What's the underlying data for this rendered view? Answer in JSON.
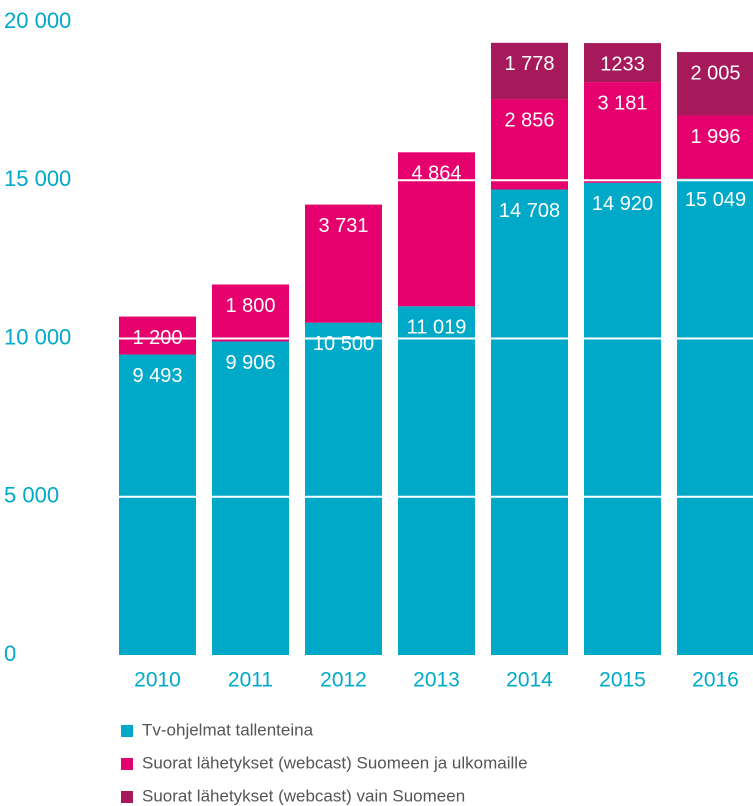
{
  "chart_data": {
    "type": "stacked_bar",
    "categories": [
      "2010",
      "2011",
      "2012",
      "2013",
      "2014",
      "2015",
      "2016"
    ],
    "series": [
      {
        "name": "Tv-ohjelmat tallenteina",
        "color": "#00a9c8",
        "values": [
          9493,
          9906,
          10500,
          11019,
          14708,
          14920,
          15049
        ],
        "value_labels": [
          "9 493",
          "9 906",
          "10 500",
          "11 019",
          "14 708",
          "14 920",
          "15 049"
        ]
      },
      {
        "name": "Suorat lähetykset (webcast) Suomeen ja ulkomaille",
        "color": "#e5006d",
        "values": [
          1200,
          1800,
          3731,
          4864,
          2856,
          3181,
          1996
        ],
        "value_labels": [
          "1 200",
          "1 800",
          "3 731",
          "4 864",
          "2 856",
          "3 181",
          "1 996"
        ]
      },
      {
        "name": "Suorat lähetykset (webcast) vain Suomeen",
        "color": "#a6195a",
        "values": [
          null,
          null,
          null,
          null,
          1778,
          1233,
          2005
        ],
        "value_labels": [
          null,
          null,
          null,
          null,
          "1 778",
          "1233",
          "2 005"
        ]
      }
    ],
    "ylim": [
      0,
      20000
    ],
    "yticks": [
      0,
      {
        "value": 5000,
        "label": "5 000"
      },
      {
        "value": 10000,
        "label": "10 000"
      },
      {
        "value": 15000,
        "label": "15 000"
      },
      {
        "value": 20000,
        "label": "20 000"
      }
    ],
    "grid": true
  }
}
